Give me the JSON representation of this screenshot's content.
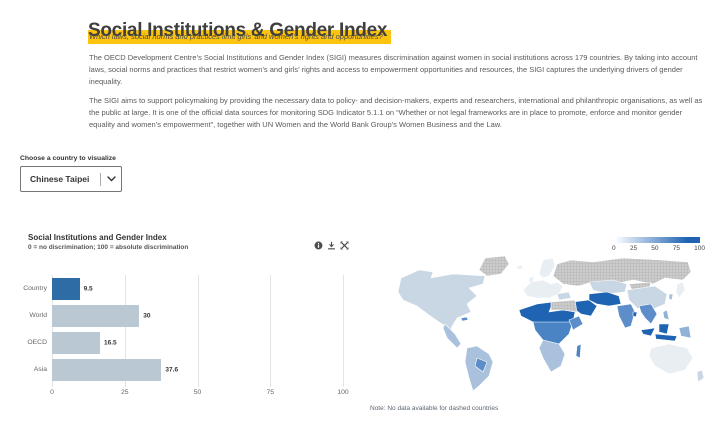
{
  "header": {
    "title": "Social Institutions & Gender Index",
    "subtitle": "Which laws, social norms and practices limit girls’ and women’s rights and opportunities?",
    "paragraph1": "The OECD Development Centre’s Social Institutions and Gender Index (SIGI) measures discrimination against women in social institutions across 179 countries. By taking into account laws, social norms and practices that restrict women’s and girls’ rights and access to empowerment opportunities and resources, the SIGI captures the underlying drivers of gender inequality.",
    "paragraph2": "The SIGI aims to support policymaking by providing the necessary data to policy- and decision-makers, experts and researchers, international and philanthropic organisations, as well as the public at large. It is one of the official data sources for monitoring SDG Indicator 5.1.1 on “Whether or not legal frameworks are in place to promote, enforce and monitor gender equality and women’s empowerment”, together with UN Women and the World Bank Group’s Women Business and the Law."
  },
  "controls": {
    "label": "Choose a country to visualize",
    "selected_country": "Chinese Taipei"
  },
  "panel": {
    "icons": [
      "info-icon",
      "download-icon",
      "fullscreen-icon"
    ]
  },
  "chart_data": [
    {
      "type": "bar",
      "orientation": "horizontal",
      "title": "Social Institutions and Gender Index",
      "subtitle": "0 = no discrimination; 100 = absolute discrimination",
      "categories": [
        "Country",
        "World",
        "OECD",
        "Asia"
      ],
      "values": [
        9.5,
        30,
        16.5,
        37.6
      ],
      "value_labels": [
        "9.5",
        "30",
        "16.5",
        "37.6"
      ],
      "bar_colors": [
        "#2d6ca4",
        "#b9c8d3",
        "#b9c8d3",
        "#b9c8d3"
      ],
      "xlim": [
        0,
        100
      ],
      "xticks": [
        0,
        25,
        50,
        75,
        100
      ],
      "xtick_labels": [
        "0",
        "25",
        "50",
        "75",
        "100"
      ],
      "grid": true,
      "legend": "none"
    },
    {
      "type": "choropleth",
      "title": "",
      "legend": {
        "min": 0,
        "max": 100,
        "ticks": [
          "0",
          "25",
          "50",
          "75",
          "100"
        ],
        "gradient": [
          "#f6f9fc",
          "#1d63b1"
        ],
        "position": "top-right"
      },
      "note": "Note: No data available for dashed countries",
      "palette": {
        "no_data": "hatch",
        "very_low": "#e9eef3",
        "low": "#c9d6e4",
        "low_medium": "#a9c1dc",
        "medium": "#8fb2d6",
        "medium_high": "#5d8ec9",
        "high": "#4a84c4",
        "very_high": "#1f64b2"
      },
      "regions": [
        {
          "region": "Russia",
          "level": "no_data"
        },
        {
          "region": "Greenland",
          "level": "no_data"
        },
        {
          "region": "Libya / Egypt",
          "level": "no_data"
        },
        {
          "region": "Mongolia",
          "level": "no_data"
        },
        {
          "region": "North America",
          "level": "low"
        },
        {
          "region": "Mexico / Central America",
          "level": "low_medium"
        },
        {
          "region": "Caribbean",
          "level": "medium_high"
        },
        {
          "region": "South America",
          "level": "low_medium"
        },
        {
          "region": "Bolivia / Paraguay",
          "level": "medium_high"
        },
        {
          "region": "Europe",
          "level": "very_low"
        },
        {
          "region": "Scandinavia",
          "level": "very_low"
        },
        {
          "region": "Turkey",
          "level": "low"
        },
        {
          "region": "Sahel / West & North Africa",
          "level": "very_high"
        },
        {
          "region": "Central Africa",
          "level": "high"
        },
        {
          "region": "Horn of Africa",
          "level": "medium_high"
        },
        {
          "region": "Southern Africa",
          "level": "low_medium"
        },
        {
          "region": "Madagascar",
          "level": "high"
        },
        {
          "region": "Middle East (Arabian Peninsula)",
          "level": "very_high"
        },
        {
          "region": "Iran / Afghanistan / Pakistan",
          "level": "very_high"
        },
        {
          "region": "Central Asia",
          "level": "low"
        },
        {
          "region": "India",
          "level": "medium_high"
        },
        {
          "region": "Bangladesh",
          "level": "very_high"
        },
        {
          "region": "China",
          "level": "low"
        },
        {
          "region": "Korea",
          "level": "low_medium"
        },
        {
          "region": "Japan",
          "level": "very_low"
        },
        {
          "region": "Southeast Asia",
          "level": "medium_high"
        },
        {
          "region": "Philippines",
          "level": "medium"
        },
        {
          "region": "Indonesia / Malaysia",
          "level": "very_high"
        },
        {
          "region": "Papua New Guinea",
          "level": "medium"
        },
        {
          "region": "Australia",
          "level": "very_low"
        },
        {
          "region": "New Zealand",
          "level": "low"
        }
      ]
    }
  ]
}
